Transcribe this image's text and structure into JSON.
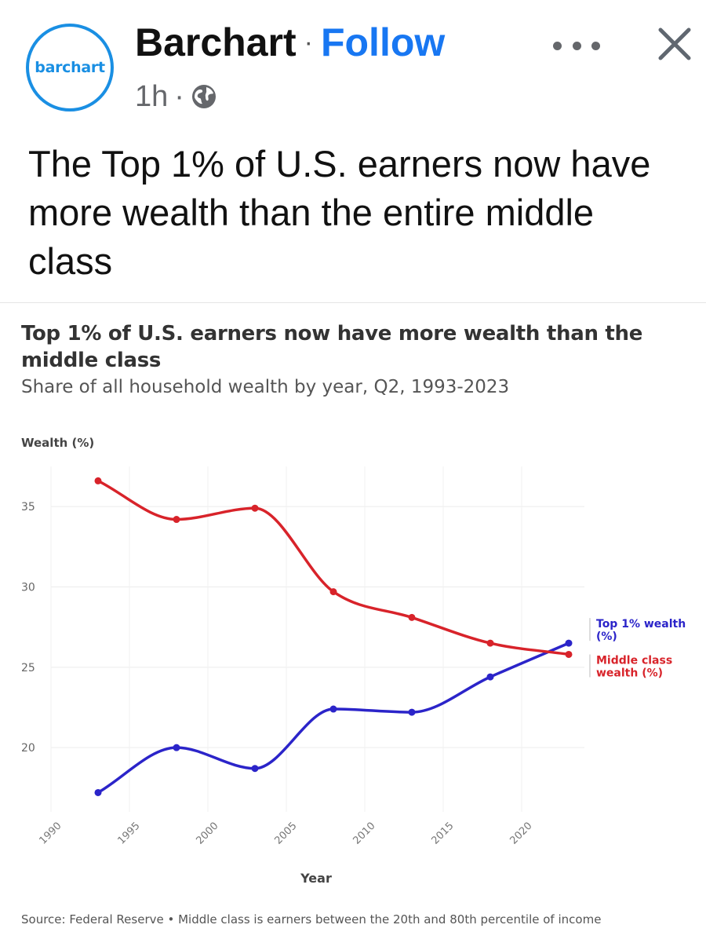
{
  "post": {
    "avatar_text": "barchart",
    "author": "Barchart",
    "separator": "·",
    "follow_label": "Follow",
    "time": "1h",
    "privacy_icon": "globe-icon",
    "more_icon": "more-dots-icon",
    "close_icon": "close-icon",
    "text": "The Top 1% of U.S. earners now have more wealth than the entire middle class"
  },
  "colors": {
    "brand": "#1a8fe3",
    "follow": "#1877f2",
    "series_top": "#2b24c9",
    "series_middle": "#d8232a"
  },
  "chart_data": {
    "type": "line",
    "title": "Top 1% of U.S. earners now have more wealth than the middle class",
    "subtitle": "Share of all household wealth by year, Q2, 1993-2023",
    "ylabel": "Wealth (%)",
    "xlabel": "Year",
    "xlim": [
      1990,
      2024
    ],
    "ylim": [
      16,
      37.5
    ],
    "xticks": [
      1990,
      1995,
      2000,
      2005,
      2010,
      2015,
      2020
    ],
    "yticks": [
      20,
      25,
      30,
      35
    ],
    "grid": true,
    "series": [
      {
        "name": "Top 1% wealth (%)",
        "label_lines": [
          "Top 1% wealth",
          "(%)"
        ],
        "color": "#2b24c9",
        "x": [
          1993,
          1998,
          2003,
          2008,
          2013,
          2018,
          2023
        ],
        "y": [
          17.2,
          20.0,
          18.7,
          22.4,
          22.2,
          24.4,
          26.5
        ]
      },
      {
        "name": "Middle class wealth (%)",
        "label_lines": [
          "Middle class",
          "wealth (%)"
        ],
        "color": "#d8232a",
        "x": [
          1993,
          1998,
          2003,
          2008,
          2013,
          2018,
          2023
        ],
        "y": [
          36.6,
          34.2,
          34.9,
          29.7,
          28.1,
          26.5,
          25.8
        ]
      }
    ],
    "source": "Source: Federal Reserve • Middle class is earners between the 20th and 80th percentile of income"
  }
}
